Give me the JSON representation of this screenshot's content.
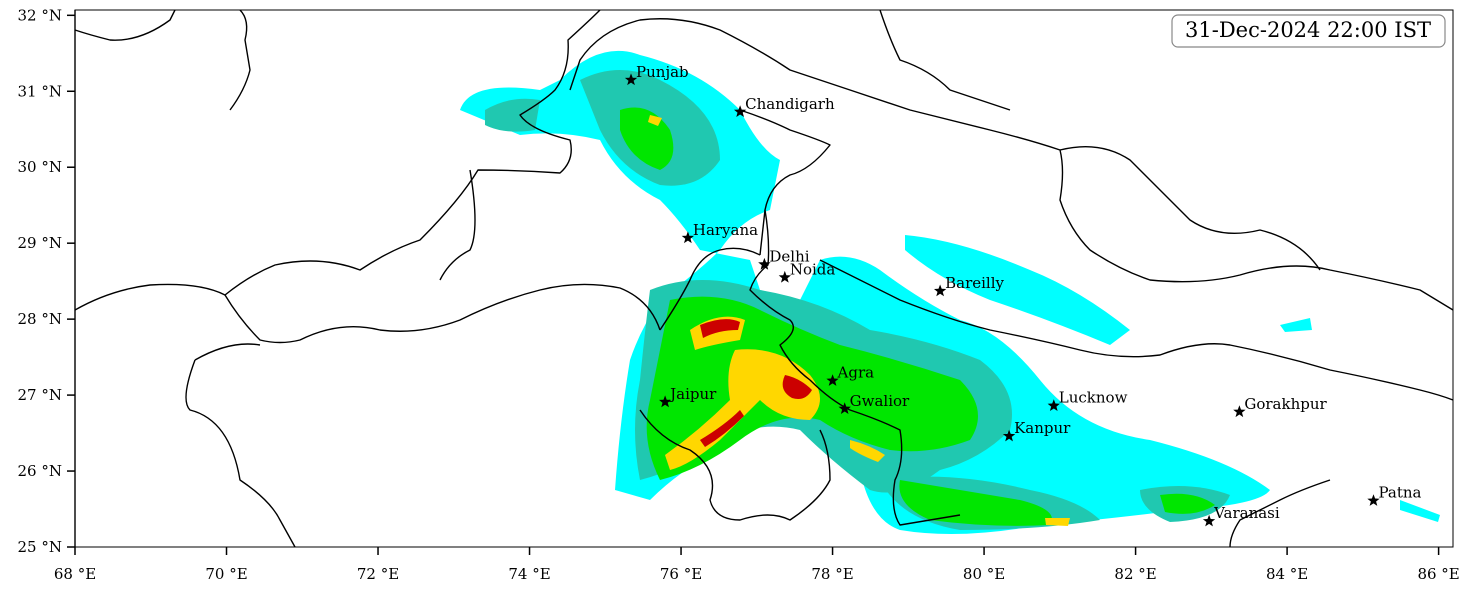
{
  "map": {
    "timestamp": "31-Dec-2024 22:00 IST",
    "xlim": [
      68,
      86.19
    ],
    "ylim": [
      25,
      32.07
    ],
    "xticks": [
      {
        "value": 68,
        "label": "68 °E"
      },
      {
        "value": 70,
        "label": "70 °E"
      },
      {
        "value": 72,
        "label": "72 °E"
      },
      {
        "value": 74,
        "label": "74 °E"
      },
      {
        "value": 76,
        "label": "76 °E"
      },
      {
        "value": 78,
        "label": "78 °E"
      },
      {
        "value": 80,
        "label": "80 °E"
      },
      {
        "value": 82,
        "label": "82 °E"
      },
      {
        "value": 84,
        "label": "84 °E"
      },
      {
        "value": 86,
        "label": "86 °E"
      }
    ],
    "yticks": [
      {
        "value": 25,
        "label": "25 °N"
      },
      {
        "value": 26,
        "label": "26 °N"
      },
      {
        "value": 27,
        "label": "27 °N"
      },
      {
        "value": 28,
        "label": "28 °N"
      },
      {
        "value": 29,
        "label": "29 °N"
      },
      {
        "value": 30,
        "label": "30 °N"
      },
      {
        "value": 31,
        "label": "31 °N"
      },
      {
        "value": 32,
        "label": "32 °N"
      }
    ],
    "cities": [
      {
        "name": "Punjab",
        "lon": 75.34,
        "lat": 31.15
      },
      {
        "name": "Chandigarh",
        "lon": 76.78,
        "lat": 30.73
      },
      {
        "name": "Haryana",
        "lon": 76.09,
        "lat": 29.07
      },
      {
        "name": "Delhi",
        "lon": 77.1,
        "lat": 28.72
      },
      {
        "name": "Noida",
        "lon": 77.37,
        "lat": 28.55
      },
      {
        "name": "Bareilly",
        "lon": 79.42,
        "lat": 28.37
      },
      {
        "name": "Agra",
        "lon": 78.0,
        "lat": 27.19
      },
      {
        "name": "Jaipur",
        "lon": 75.79,
        "lat": 26.91
      },
      {
        "name": "Gwalior",
        "lon": 78.16,
        "lat": 26.82
      },
      {
        "name": "Lucknow",
        "lon": 80.92,
        "lat": 26.86
      },
      {
        "name": "Kanpur",
        "lon": 80.33,
        "lat": 26.46
      },
      {
        "name": "Gorakhpur",
        "lon": 83.37,
        "lat": 26.78
      },
      {
        "name": "Varanasi",
        "lon": 82.97,
        "lat": 25.34
      },
      {
        "name": "Patna",
        "lon": 85.14,
        "lat": 25.61
      }
    ]
  }
}
